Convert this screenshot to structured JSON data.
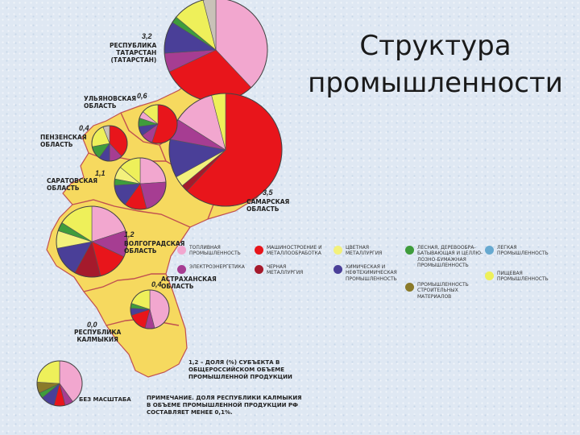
{
  "title": {
    "line1": "Структура",
    "line2": "промышленности"
  },
  "colors": {
    "fuel": "#f2a7cf",
    "machine": "#e8151b",
    "nonferrous": "#f3f17c",
    "forestry": "#3f9c3c",
    "light": "#67a9d0",
    "electric": "#a63d92",
    "ferrous": "#a51a2c",
    "chemical": "#4a3f98",
    "building": "#8a7a2a",
    "food": "#eef05a",
    "gray": "#c9c2b8",
    "land": "#f6d95f",
    "border": "#c05050"
  },
  "regions": [
    {
      "id": "tatarstan",
      "label": "Республика\nТатарстан\n(Татарстан)",
      "share": "3,2"
    },
    {
      "id": "ulyanovsk",
      "label": "Ульяновская\nобласть",
      "share": "0,6"
    },
    {
      "id": "penza",
      "label": "Пензенская\nобласть",
      "share": "0,4"
    },
    {
      "id": "saratov",
      "label": "Саратовская\nобласть",
      "share": "1,1"
    },
    {
      "id": "samara",
      "label": "Самарская\nобласть",
      "share": "3,5"
    },
    {
      "id": "volgograd",
      "label": "Волгоградская\nобласть",
      "share": "1,2"
    },
    {
      "id": "astrakhan",
      "label": "Астраханская\nобласть",
      "share": "0,4"
    },
    {
      "id": "kalmykia",
      "label": "Республика\nКалмыкия",
      "share": "0,0"
    }
  ],
  "legend": [
    {
      "key": "fuel",
      "text": "Топливная\nпромышленность"
    },
    {
      "key": "machine",
      "text": "Машиностроение и\nметаллообработка"
    },
    {
      "key": "nonferrous",
      "text": "Цветная\nметаллургия"
    },
    {
      "key": "forestry",
      "text": "Лесная, деревообра-\nбатывающая и целлю-\nлозно-бумажная\nпромышленность"
    },
    {
      "key": "light",
      "text": "Легкая\nпромышленность"
    },
    {
      "key": "electric",
      "text": "Электроэнергетика"
    },
    {
      "key": "ferrous",
      "text": "Черная\nметаллургия"
    },
    {
      "key": "chemical",
      "text": "Химическая и\nнефтехимическая\nпромышленность"
    },
    {
      "key": "building",
      "text": "Промышленность\nстроительных\nматериалов"
    },
    {
      "key": "food",
      "text": "Пищевая\nпромышленность"
    }
  ],
  "share_note": "1,2 – доля (%) субъекта в\nобщероссийском объеме\nпромышленной продукции",
  "scale_note": "Без масштаба",
  "kalmykia_note": "Примечание. Доля Республики Калмыкия\nв объеме промышленной продукции РФ\nсоставляет менее 0,1%."
}
